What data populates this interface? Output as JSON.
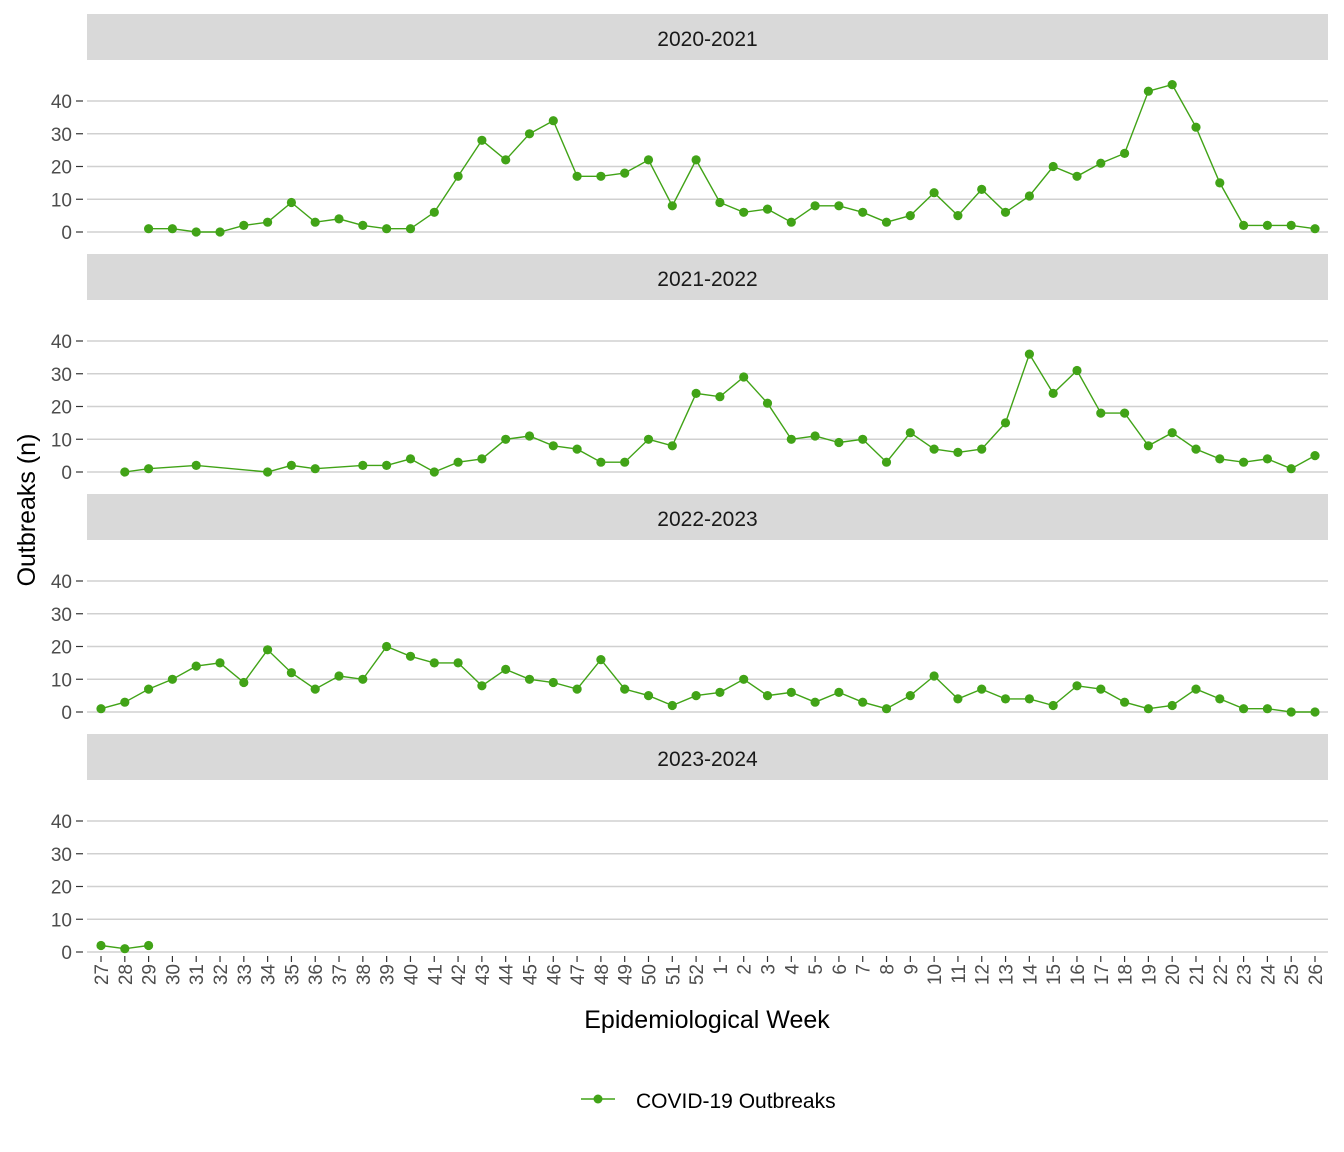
{
  "chart_data": {
    "type": "line",
    "layout": "faceted-vertical",
    "xlabel": "Epidemiological Week",
    "ylabel": "Outbreaks (n)",
    "ylim": [
      0,
      45
    ],
    "yticks": [
      0,
      10,
      20,
      30,
      40
    ],
    "grid": "horizontal-major",
    "legend_position": "bottom",
    "categories": [
      "27",
      "28",
      "29",
      "30",
      "31",
      "32",
      "33",
      "34",
      "35",
      "36",
      "37",
      "38",
      "39",
      "40",
      "41",
      "42",
      "43",
      "44",
      "45",
      "46",
      "47",
      "48",
      "49",
      "50",
      "51",
      "52",
      "1",
      "2",
      "3",
      "4",
      "5",
      "6",
      "7",
      "8",
      "9",
      "10",
      "11",
      "12",
      "13",
      "14",
      "15",
      "16",
      "17",
      "18",
      "19",
      "20",
      "21",
      "22",
      "23",
      "24",
      "25",
      "26"
    ],
    "series_name": "COVID-19 Outbreaks",
    "series_color": "#41A317",
    "facets": [
      {
        "label": "2020-2021",
        "values": [
          null,
          null,
          1,
          1,
          0,
          0,
          2,
          3,
          9,
          3,
          4,
          2,
          1,
          1,
          6,
          17,
          28,
          22,
          30,
          34,
          17,
          17,
          18,
          22,
          8,
          22,
          9,
          6,
          7,
          3,
          8,
          8,
          6,
          3,
          5,
          12,
          5,
          13,
          6,
          11,
          20,
          17,
          21,
          24,
          43,
          45,
          32,
          15,
          2,
          2,
          2,
          1
        ]
      },
      {
        "label": "2021-2022",
        "values": [
          null,
          0,
          1,
          null,
          2,
          null,
          null,
          0,
          2,
          1,
          null,
          2,
          2,
          4,
          0,
          3,
          4,
          10,
          11,
          8,
          7,
          3,
          3,
          10,
          8,
          24,
          23,
          29,
          21,
          10,
          11,
          9,
          10,
          3,
          12,
          7,
          6,
          7,
          15,
          36,
          24,
          31,
          18,
          18,
          8,
          12,
          7,
          4,
          3,
          4,
          1,
          5
        ]
      },
      {
        "label": "2022-2023",
        "values": [
          1,
          3,
          7,
          10,
          14,
          15,
          9,
          19,
          12,
          7,
          11,
          10,
          20,
          17,
          15,
          15,
          8,
          13,
          10,
          9,
          7,
          16,
          7,
          5,
          2,
          5,
          6,
          10,
          5,
          6,
          3,
          6,
          3,
          1,
          5,
          11,
          4,
          7,
          4,
          4,
          2,
          8,
          7,
          3,
          1,
          2,
          7,
          4,
          1,
          1,
          0,
          0
        ]
      },
      {
        "label": "2023-2024",
        "values": [
          2,
          1,
          2,
          null,
          null,
          null,
          null,
          null,
          null,
          null,
          null,
          null,
          null,
          null,
          null,
          null,
          null,
          null,
          null,
          null,
          null,
          null,
          null,
          null,
          null,
          null,
          null,
          null,
          null,
          null,
          null,
          null,
          null,
          null,
          null,
          null,
          null,
          null,
          null,
          null,
          null,
          null,
          null,
          null,
          null,
          null,
          null,
          null,
          null,
          null,
          null,
          null
        ]
      }
    ]
  }
}
